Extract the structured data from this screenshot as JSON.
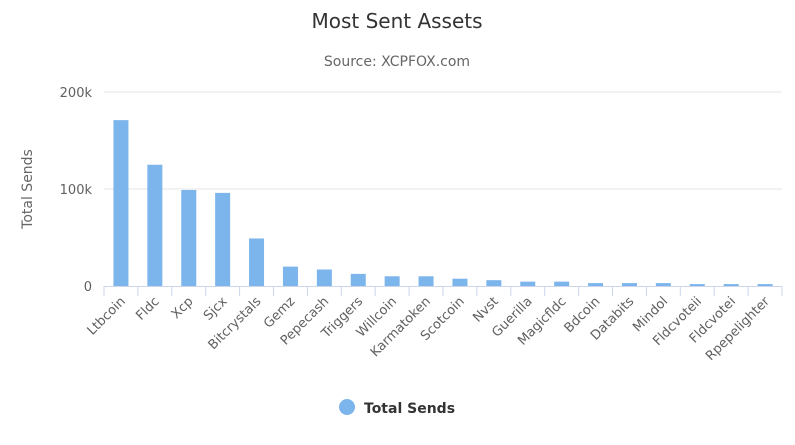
{
  "chart_data": {
    "type": "bar",
    "title": "Most Sent Assets",
    "subtitle": "Source: XCPFOX.com",
    "ylabel": "Total Sends",
    "xlabel": "",
    "ylim": [
      0,
      200000
    ],
    "yticks": [
      0,
      100000,
      200000
    ],
    "ytick_labels": [
      "0",
      "100k",
      "200k"
    ],
    "grid": true,
    "legend_position": "bottom-center",
    "categories": [
      "Ltbcoin",
      "Fldc",
      "Xcp",
      "Sjcx",
      "Bitcrystals",
      "Gemz",
      "Pepecash",
      "Triggers",
      "Willcoin",
      "Karmatoken",
      "Scotcoin",
      "Nvst",
      "Guerilla",
      "Magicfldc",
      "Bdcoin",
      "Databits",
      "Mindol",
      "Fldcvoteii",
      "Fldcvotei",
      "Rpepelighter"
    ],
    "series": [
      {
        "name": "Total Sends",
        "color": "#7cb5ec",
        "values": [
          171000,
          125000,
          99000,
          96000,
          49000,
          20000,
          17000,
          12500,
          10000,
          10000,
          7500,
          6000,
          4500,
          4500,
          3000,
          3000,
          3000,
          2000,
          2000,
          2000
        ]
      }
    ]
  }
}
